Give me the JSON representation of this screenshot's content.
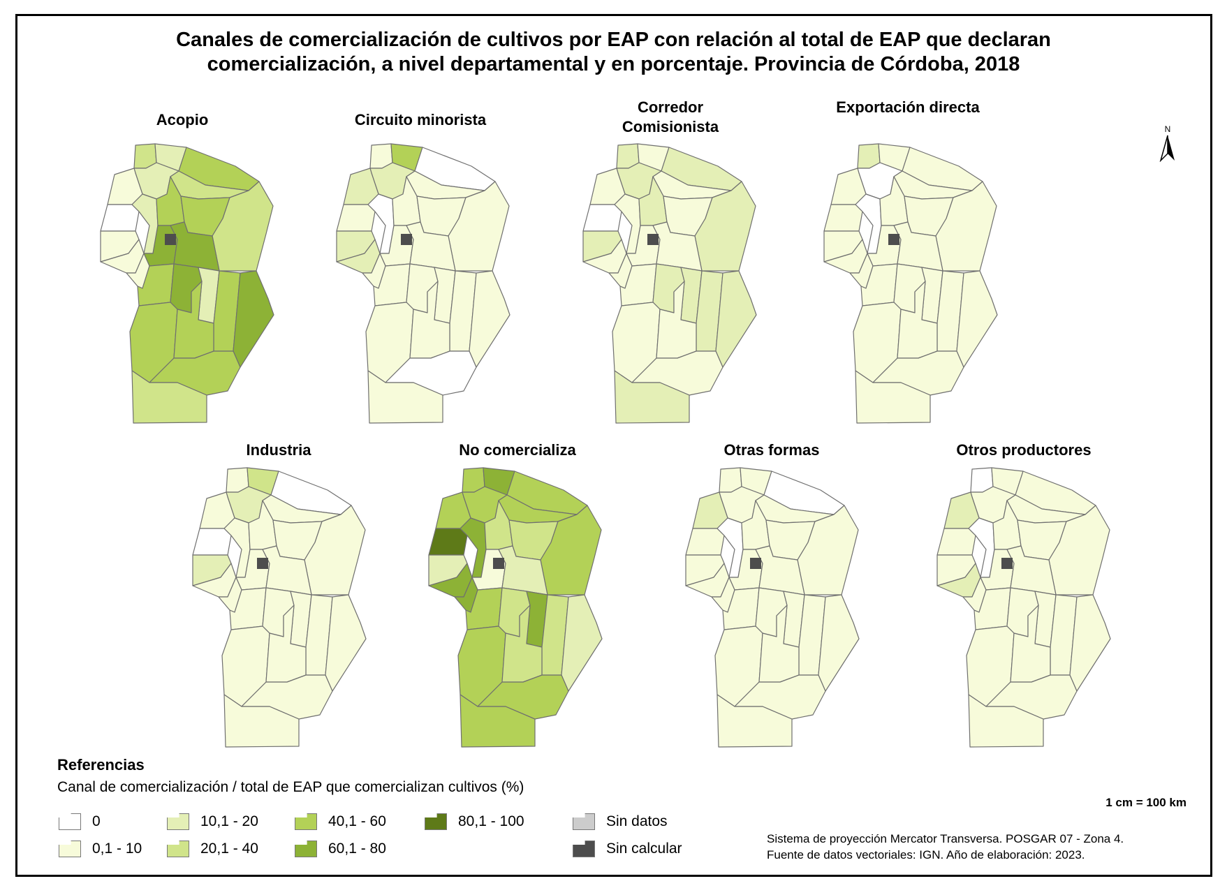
{
  "title": [
    "Canales de comercialización de cultivos por EAP con relación al total de EAP que declaran",
    "comercialización, a nivel departamental y en porcentaje. Provincia de Córdoba, 2018"
  ],
  "north_label": "N",
  "colors": {
    "c0": "#ffffff",
    "c1": "#f7fbda",
    "c2": "#e4efb6",
    "c3": "#d0e48a",
    "c4": "#b3d157",
    "c5": "#8db236",
    "c6": "#5e7a18",
    "sin_datos": "#cccccc",
    "sin_calcular": "#4d4d4d",
    "border": "#6f6f6f"
  },
  "maps": [
    {
      "title": "Acopio",
      "classes": [
        3,
        2,
        4,
        2,
        3,
        1,
        0,
        2,
        4,
        4,
        3,
        1,
        1,
        5,
        5,
        1,
        4,
        5,
        2,
        4,
        5,
        4,
        4,
        4,
        3
      ]
    },
    {
      "title": "Circuito minorista",
      "classes": [
        1,
        4,
        0,
        2,
        1,
        2,
        1,
        0,
        1,
        1,
        1,
        2,
        2,
        1,
        1,
        1,
        1,
        1,
        1,
        1,
        1,
        1,
        1,
        0,
        1
      ]
    },
    {
      "title": "Corredor Comisionista",
      "classes": [
        2,
        1,
        2,
        2,
        1,
        1,
        0,
        1,
        2,
        1,
        2,
        2,
        1,
        1,
        1,
        1,
        1,
        2,
        2,
        2,
        2,
        1,
        1,
        1,
        2
      ]
    },
    {
      "title": "Exportación directa",
      "classes": [
        2,
        1,
        1,
        0,
        1,
        1,
        1,
        0,
        1,
        1,
        1,
        1,
        1,
        1,
        1,
        1,
        1,
        1,
        1,
        1,
        1,
        1,
        1,
        1,
        1
      ]
    },
    {
      "title": "Industria",
      "classes": [
        1,
        3,
        0,
        2,
        1,
        1,
        0,
        1,
        1,
        1,
        1,
        2,
        1,
        1,
        1,
        1,
        1,
        1,
        1,
        1,
        1,
        1,
        1,
        1,
        1
      ]
    },
    {
      "title": "No comercializa",
      "classes": [
        4,
        5,
        4,
        4,
        4,
        4,
        6,
        5,
        3,
        3,
        4,
        2,
        5,
        1,
        2,
        5,
        4,
        3,
        5,
        3,
        2,
        4,
        3,
        4,
        4
      ]
    },
    {
      "title": "Otras formas",
      "classes": [
        1,
        1,
        0,
        1,
        1,
        2,
        1,
        0,
        1,
        1,
        1,
        1,
        1,
        1,
        1,
        1,
        1,
        1,
        1,
        1,
        1,
        1,
        1,
        1,
        1
      ]
    },
    {
      "title": "Otros productores",
      "classes": [
        0,
        1,
        1,
        1,
        1,
        2,
        1,
        0,
        1,
        1,
        1,
        1,
        2,
        1,
        1,
        1,
        1,
        1,
        1,
        1,
        1,
        1,
        1,
        1,
        1
      ]
    }
  ],
  "legend": {
    "heading": "Referencias",
    "subtitle": "Canal de comercialización / total de EAP que comercializan cultivos (%)",
    "items": [
      {
        "label": "0",
        "color": "#ffffff"
      },
      {
        "label": "0,1 - 10",
        "color": "#f7fbda"
      },
      {
        "label": "10,1 - 20",
        "color": "#e4efb6"
      },
      {
        "label": "20,1 - 40",
        "color": "#d0e48a"
      },
      {
        "label": "40,1 - 60",
        "color": "#b3d157"
      },
      {
        "label": "60,1 - 80",
        "color": "#8db236"
      },
      {
        "label": "80,1 - 100",
        "color": "#5e7a18"
      },
      {
        "label": "Sin datos",
        "color": "#cccccc"
      },
      {
        "label": "Sin calcular",
        "color": "#4d4d4d"
      }
    ]
  },
  "scale": "1 cm = 100 km",
  "footer": [
    "Sistema de proyección Mercator Transversa. POSGAR 07 - Zona 4.",
    "Fuente de datos vectoriales: IGN. Año de elaboración: 2023."
  ]
}
